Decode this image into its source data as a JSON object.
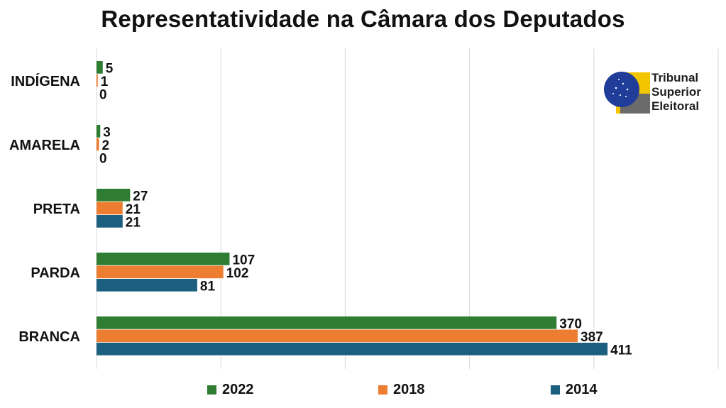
{
  "chart_data": {
    "type": "bar",
    "orientation": "horizontal",
    "title": "Representatividade na Câmara dos Deputados",
    "categories": [
      "INDÍGENA",
      "AMARELA",
      "PRETA",
      "PARDA",
      "BRANCA"
    ],
    "series": [
      {
        "name": "2022",
        "color": "#2e7d32",
        "values": [
          5,
          3,
          27,
          107,
          370
        ]
      },
      {
        "name": "2018",
        "color": "#ed7d31",
        "values": [
          1,
          2,
          21,
          102,
          387
        ]
      },
      {
        "name": "2014",
        "color": "#1b5e7e",
        "values": [
          0,
          0,
          21,
          81,
          411
        ]
      }
    ],
    "xlim": [
      0,
      500
    ],
    "grid": true,
    "legend_position": "bottom"
  },
  "logo": {
    "lines": [
      "Tribunal",
      "Superior",
      "Eleitoral"
    ],
    "accent_yellow": "#f2c500",
    "accent_blue": "#1f3d99"
  }
}
